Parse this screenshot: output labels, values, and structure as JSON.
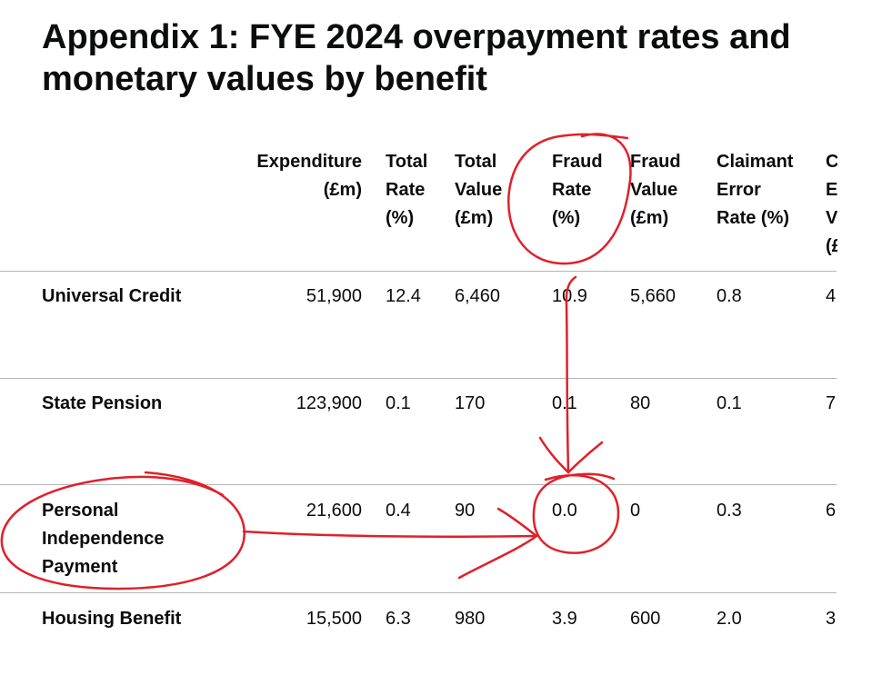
{
  "title": "Appendix 1: FYE 2024 overpayment rates and monetary values by benefit",
  "columns": [
    {
      "lines": [
        "Expenditure",
        "(£m)"
      ]
    },
    {
      "lines": [
        "Total",
        "Rate",
        "(%)"
      ]
    },
    {
      "lines": [
        "Total",
        "Value",
        "(£m)"
      ]
    },
    {
      "lines": [
        "Fraud",
        "Rate",
        "(%)"
      ]
    },
    {
      "lines": [
        "Fraud",
        "Value",
        "(£m)"
      ]
    },
    {
      "lines": [
        "Claimant",
        "Error",
        "Rate (%)"
      ]
    },
    {
      "lines": [
        "C",
        "E",
        "V",
        "(£"
      ]
    }
  ],
  "rows": [
    {
      "label": [
        "Universal Credit"
      ],
      "values": [
        "51,900",
        "12.4",
        "6,460",
        "10.9",
        "5,660",
        "0.8",
        "4"
      ]
    },
    {
      "label": [
        "State Pension"
      ],
      "values": [
        "123,900",
        "0.1",
        "170",
        "0.1",
        "80",
        "0.1",
        "7"
      ]
    },
    {
      "label": [
        "Personal",
        "Independence",
        "Payment"
      ],
      "values": [
        "21,600",
        "0.4",
        "90",
        "0.0",
        "0",
        "0.3",
        "6"
      ]
    },
    {
      "label": [
        "Housing Benefit"
      ],
      "values": [
        "15,500",
        "6.3",
        "980",
        "3.9",
        "600",
        "2.0",
        "3"
      ]
    }
  ],
  "annotation_color": "#e0202a"
}
